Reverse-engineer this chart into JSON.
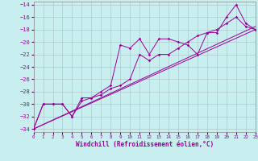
{
  "xlabel": "Windchill (Refroidissement éolien,°C)",
  "xlim": [
    0,
    23
  ],
  "ylim": [
    -34.5,
    -13.5
  ],
  "yticks": [
    -34,
    -32,
    -30,
    -28,
    -26,
    -24,
    -22,
    -20,
    -18,
    -16,
    -14
  ],
  "xticks": [
    0,
    1,
    2,
    3,
    4,
    5,
    6,
    7,
    8,
    9,
    10,
    11,
    12,
    13,
    14,
    15,
    16,
    17,
    18,
    19,
    20,
    21,
    22,
    23
  ],
  "background_color": "#c8eef0",
  "grid_color": "#b0c8c8",
  "line_color": "#990099",
  "series": [
    {
      "x": [
        0,
        1,
        2,
        3,
        4,
        5,
        6,
        7,
        8,
        9,
        10,
        11,
        12,
        13,
        14,
        15,
        16,
        17,
        18,
        19,
        20,
        21,
        22,
        23
      ],
      "y": [
        -34,
        -30,
        -30,
        -30,
        -32,
        -29,
        -29,
        -28,
        -27,
        -20.5,
        -21,
        -19.5,
        -22,
        -19.5,
        -19.5,
        -20,
        -20.5,
        -22,
        -18.5,
        -18.5,
        -16,
        -14,
        -17,
        -18
      ]
    },
    {
      "x": [
        0,
        1,
        2,
        3,
        4,
        5,
        6,
        7,
        8,
        9,
        10,
        11,
        12,
        13,
        14,
        15,
        16,
        17,
        18,
        19,
        20,
        21,
        22,
        23
      ],
      "y": [
        -34,
        -30,
        -30,
        -30,
        -32,
        -29.5,
        -29,
        -28.5,
        -27.5,
        -27,
        -26,
        -22,
        -23,
        -22,
        -22,
        -21,
        -20,
        -19,
        -18.5,
        -18,
        -17,
        -16,
        -17.5,
        -18
      ]
    },
    {
      "x": [
        0,
        23
      ],
      "y": [
        -34,
        -18
      ]
    },
    {
      "x": [
        0,
        23
      ],
      "y": [
        -34,
        -17.5
      ]
    }
  ]
}
